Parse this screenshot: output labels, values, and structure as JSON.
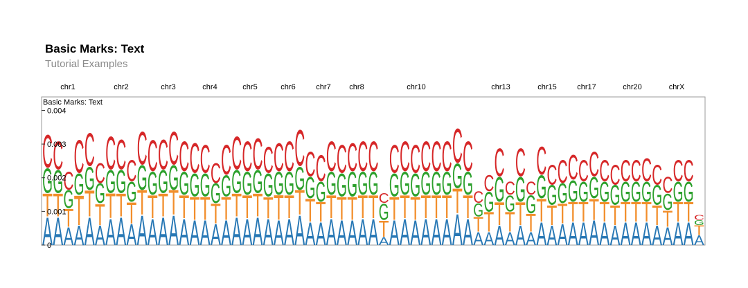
{
  "header": {
    "title": "Basic Marks: Text",
    "subtitle": "Tutorial Examples"
  },
  "chart_data": {
    "type": "sequence-logo",
    "track_title": "Basic Marks: Text",
    "chromosomes": [
      "chr1",
      "chr2",
      "chr3",
      "chr4",
      "chr5",
      "chr6",
      "chr7",
      "chr8",
      "chr10",
      "chr13",
      "chr15",
      "chr17",
      "chr20",
      "chrX"
    ],
    "y_ticks": [
      "0",
      "0.001",
      "0.002",
      "0.003",
      "0.004"
    ],
    "ylim": [
      0,
      0.0044
    ],
    "stack_order": [
      "A",
      "T",
      "G",
      "C"
    ],
    "colors": {
      "A": "#2878b5",
      "T": "#f28e2b",
      "G": "#2ca02c",
      "C": "#d62728"
    },
    "columns": [
      {
        "A": 0.00085,
        "T": 0.0007,
        "G": 0.00075,
        "C": 0.001
      },
      {
        "A": 0.00085,
        "T": 0.0007,
        "G": 0.0007,
        "C": 0.00085
      },
      {
        "A": 0.00055,
        "T": 0.00055,
        "G": 0.00055,
        "C": 0.00055
      },
      {
        "A": 0.0006,
        "T": 0.0009,
        "G": 0.00065,
        "C": 0.001
      },
      {
        "A": 0.00085,
        "T": 0.0008,
        "G": 0.0007,
        "C": 0.001
      },
      {
        "A": 0.0006,
        "T": 0.00065,
        "G": 0.0006,
        "C": 0.0006
      },
      {
        "A": 0.0008,
        "T": 0.00075,
        "G": 0.0007,
        "C": 0.001
      },
      {
        "A": 0.00085,
        "T": 0.0007,
        "G": 0.0007,
        "C": 0.0009
      },
      {
        "A": 0.00065,
        "T": 0.00065,
        "G": 0.0006,
        "C": 0.00065
      },
      {
        "A": 0.0009,
        "T": 0.00075,
        "G": 0.00075,
        "C": 0.001
      },
      {
        "A": 0.0008,
        "T": 0.0007,
        "G": 0.0007,
        "C": 0.00095
      },
      {
        "A": 0.00085,
        "T": 0.0007,
        "G": 0.0007,
        "C": 0.0009
      },
      {
        "A": 0.0009,
        "T": 0.00075,
        "G": 0.00075,
        "C": 0.001
      },
      {
        "A": 0.0008,
        "T": 0.0007,
        "G": 0.0007,
        "C": 0.0009
      },
      {
        "A": 0.00075,
        "T": 0.0007,
        "G": 0.0007,
        "C": 0.0009
      },
      {
        "A": 0.00075,
        "T": 0.0007,
        "G": 0.0007,
        "C": 0.00085
      },
      {
        "A": 0.00065,
        "T": 0.0006,
        "G": 0.0006,
        "C": 0.0006
      },
      {
        "A": 0.00075,
        "T": 0.0007,
        "G": 0.00065,
        "C": 0.0009
      },
      {
        "A": 0.00085,
        "T": 0.0007,
        "G": 0.0007,
        "C": 0.001
      },
      {
        "A": 0.0008,
        "T": 0.0007,
        "G": 0.0007,
        "C": 0.0009
      },
      {
        "A": 0.00085,
        "T": 0.0007,
        "G": 0.0007,
        "C": 0.00095
      },
      {
        "A": 0.0008,
        "T": 0.00065,
        "G": 0.0007,
        "C": 0.0008
      },
      {
        "A": 0.00075,
        "T": 0.00075,
        "G": 0.0007,
        "C": 0.00085
      },
      {
        "A": 0.0008,
        "T": 0.0007,
        "G": 0.0007,
        "C": 0.0009
      },
      {
        "A": 0.0009,
        "T": 0.00075,
        "G": 0.0007,
        "C": 0.0011
      },
      {
        "A": 0.0007,
        "T": 0.0007,
        "G": 0.00065,
        "C": 0.00075
      },
      {
        "A": 0.0007,
        "T": 0.0006,
        "G": 0.0006,
        "C": 0.0008
      },
      {
        "A": 0.0008,
        "T": 0.0007,
        "G": 0.0007,
        "C": 0.0009
      },
      {
        "A": 0.00075,
        "T": 0.0007,
        "G": 0.0007,
        "C": 0.00085
      },
      {
        "A": 0.00075,
        "T": 0.0007,
        "G": 0.00075,
        "C": 0.00085
      },
      {
        "A": 0.0008,
        "T": 0.0007,
        "G": 0.0007,
        "C": 0.0009
      },
      {
        "A": 0.0008,
        "T": 0.0007,
        "G": 0.0007,
        "C": 0.0009
      },
      {
        "A": 0.00025,
        "T": 0.0005,
        "G": 0.0005,
        "C": 0.0003
      },
      {
        "A": 0.00075,
        "T": 0.0007,
        "G": 0.0007,
        "C": 0.00085
      },
      {
        "A": 0.0008,
        "T": 0.0007,
        "G": 0.0007,
        "C": 0.0009
      },
      {
        "A": 0.00075,
        "T": 0.0007,
        "G": 0.0007,
        "C": 0.00085
      },
      {
        "A": 0.0008,
        "T": 0.0007,
        "G": 0.0007,
        "C": 0.0009
      },
      {
        "A": 0.0008,
        "T": 0.0007,
        "G": 0.0007,
        "C": 0.0009
      },
      {
        "A": 0.0008,
        "T": 0.0007,
        "G": 0.0007,
        "C": 0.0009
      },
      {
        "A": 0.00095,
        "T": 0.00075,
        "G": 0.00075,
        "C": 0.00105
      },
      {
        "A": 0.0008,
        "T": 0.0007,
        "G": 0.0007,
        "C": 0.0009
      },
      {
        "A": 0.0004,
        "T": 0.00045,
        "G": 0.0004,
        "C": 0.00035
      },
      {
        "A": 0.0004,
        "T": 0.0006,
        "G": 0.0006,
        "C": 0.0005
      },
      {
        "A": 0.0006,
        "T": 0.0007,
        "G": 0.00075,
        "C": 0.00085
      },
      {
        "A": 0.0004,
        "T": 0.0006,
        "G": 0.0005,
        "C": 0.0004
      },
      {
        "A": 0.0006,
        "T": 0.0007,
        "G": 0.00075,
        "C": 0.00085
      },
      {
        "A": 0.0004,
        "T": 0.00055,
        "G": 0.00055,
        "C": 0.0004
      },
      {
        "A": 0.0007,
        "T": 0.0007,
        "G": 0.0007,
        "C": 0.00085
      },
      {
        "A": 0.0006,
        "T": 0.0006,
        "G": 0.0006,
        "C": 0.0006
      },
      {
        "A": 0.00065,
        "T": 0.0006,
        "G": 0.0006,
        "C": 0.0007
      },
      {
        "A": 0.0007,
        "T": 0.0006,
        "G": 0.00065,
        "C": 0.00075
      },
      {
        "A": 0.0007,
        "T": 0.0006,
        "G": 0.0006,
        "C": 0.00065
      },
      {
        "A": 0.00075,
        "T": 0.00065,
        "G": 0.00065,
        "C": 0.00075
      },
      {
        "A": 0.0007,
        "T": 0.0006,
        "G": 0.0006,
        "C": 0.00065
      },
      {
        "A": 0.0006,
        "T": 0.0006,
        "G": 0.0006,
        "C": 0.0006
      },
      {
        "A": 0.0007,
        "T": 0.0006,
        "G": 0.0006,
        "C": 0.00065
      },
      {
        "A": 0.0007,
        "T": 0.0006,
        "G": 0.0006,
        "C": 0.00065
      },
      {
        "A": 0.0007,
        "T": 0.0006,
        "G": 0.0006,
        "C": 0.0007
      },
      {
        "A": 0.0006,
        "T": 0.0006,
        "G": 0.0006,
        "C": 0.0006
      },
      {
        "A": 0.00055,
        "T": 0.0005,
        "G": 0.0005,
        "C": 0.0005
      },
      {
        "A": 0.0007,
        "T": 0.0006,
        "G": 0.0006,
        "C": 0.00065
      },
      {
        "A": 0.0007,
        "T": 0.0006,
        "G": 0.0006,
        "C": 0.00065
      },
      {
        "A": 0.0003,
        "T": 0.0003,
        "G": 0.00015,
        "C": 0.00015
      }
    ]
  }
}
